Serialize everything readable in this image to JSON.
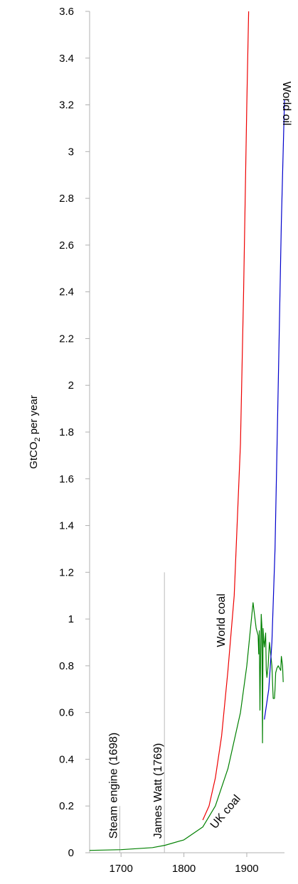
{
  "chart_data": {
    "type": "line",
    "title": "",
    "xlabel": "",
    "ylabel": {
      "prefix": "GtCO",
      "subscript": "2",
      "suffix": " per year"
    },
    "xlim": [
      1650,
      1960
    ],
    "ylim": [
      0,
      3.6
    ],
    "x_ticks": [
      1700,
      1800,
      1900
    ],
    "y_ticks": [
      0,
      0.2,
      0.4,
      0.6,
      0.8,
      1,
      1.2,
      1.4,
      1.6,
      1.8,
      2,
      2.2,
      2.4,
      2.6,
      2.8,
      3,
      3.2,
      3.4,
      3.6
    ],
    "y_tick_labels": [
      "0",
      "0.2",
      "0.4",
      "0.6",
      "0.8",
      "1",
      "1.2",
      "1.4",
      "1.6",
      "1.8",
      "2",
      "2.2",
      "2.4",
      "2.6",
      "2.8",
      "3",
      "3.2",
      "3.4",
      "3.6"
    ],
    "grid": false,
    "series": [
      {
        "name": "UK coal",
        "color": "#008000",
        "points": [
          [
            1650,
            0.01
          ],
          [
            1700,
            0.013
          ],
          [
            1750,
            0.022
          ],
          [
            1770,
            0.032
          ],
          [
            1800,
            0.055
          ],
          [
            1830,
            0.11
          ],
          [
            1850,
            0.2
          ],
          [
            1870,
            0.36
          ],
          [
            1890,
            0.6
          ],
          [
            1900,
            0.8
          ],
          [
            1910,
            1.07
          ],
          [
            1915,
            0.96
          ],
          [
            1918,
            0.93
          ],
          [
            1919,
            0.85
          ],
          [
            1920,
            0.95
          ],
          [
            1921,
            0.61
          ],
          [
            1922,
            0.84
          ],
          [
            1923,
            1.02
          ],
          [
            1924,
            0.97
          ],
          [
            1925,
            0.47
          ],
          [
            1926,
            0.96
          ],
          [
            1927,
            0.91
          ],
          [
            1928,
            0.88
          ],
          [
            1930,
            0.94
          ],
          [
            1931,
            0.78
          ],
          [
            1932,
            0.75
          ],
          [
            1934,
            0.8
          ],
          [
            1936,
            0.9
          ],
          [
            1938,
            0.85
          ],
          [
            1940,
            0.8
          ],
          [
            1941,
            0.73
          ],
          [
            1942,
            0.66
          ],
          [
            1944,
            0.66
          ],
          [
            1945,
            0.7
          ],
          [
            1946,
            0.77
          ],
          [
            1948,
            0.79
          ],
          [
            1950,
            0.8
          ],
          [
            1952,
            0.79
          ],
          [
            1954,
            0.78
          ],
          [
            1955,
            0.84
          ],
          [
            1957,
            0.8
          ],
          [
            1958,
            0.73
          ]
        ]
      },
      {
        "name": "World coal",
        "color": "#ee0000",
        "points": [
          [
            1830,
            0.14
          ],
          [
            1840,
            0.2
          ],
          [
            1850,
            0.32
          ],
          [
            1860,
            0.5
          ],
          [
            1870,
            0.78
          ],
          [
            1880,
            1.1
          ],
          [
            1890,
            1.75
          ],
          [
            1895,
            2.4
          ],
          [
            1900,
            3.2
          ],
          [
            1903,
            3.6
          ]
        ]
      },
      {
        "name": "World oil",
        "color": "#0000cc",
        "points": [
          [
            1928,
            0.57
          ],
          [
            1935,
            0.7
          ],
          [
            1940,
            0.9
          ],
          [
            1945,
            1.3
          ],
          [
            1950,
            2.0
          ],
          [
            1955,
            2.7
          ],
          [
            1960,
            3.22
          ]
        ]
      }
    ],
    "markers": [
      {
        "label": "Steam engine (1698)",
        "x": 1698,
        "y_top": 0.2
      },
      {
        "label": "James Watt (1769)",
        "x": 1769,
        "y_top": 1.2
      }
    ],
    "series_labels": [
      {
        "text": "UK coal",
        "x": 1850,
        "y": 0.1,
        "rotate": -50
      },
      {
        "text": "World coal",
        "x": 1865,
        "y": 0.88,
        "rotate": -90
      },
      {
        "text": "World oil",
        "x": 1958,
        "y": 3.3,
        "rotate": 90
      }
    ]
  }
}
